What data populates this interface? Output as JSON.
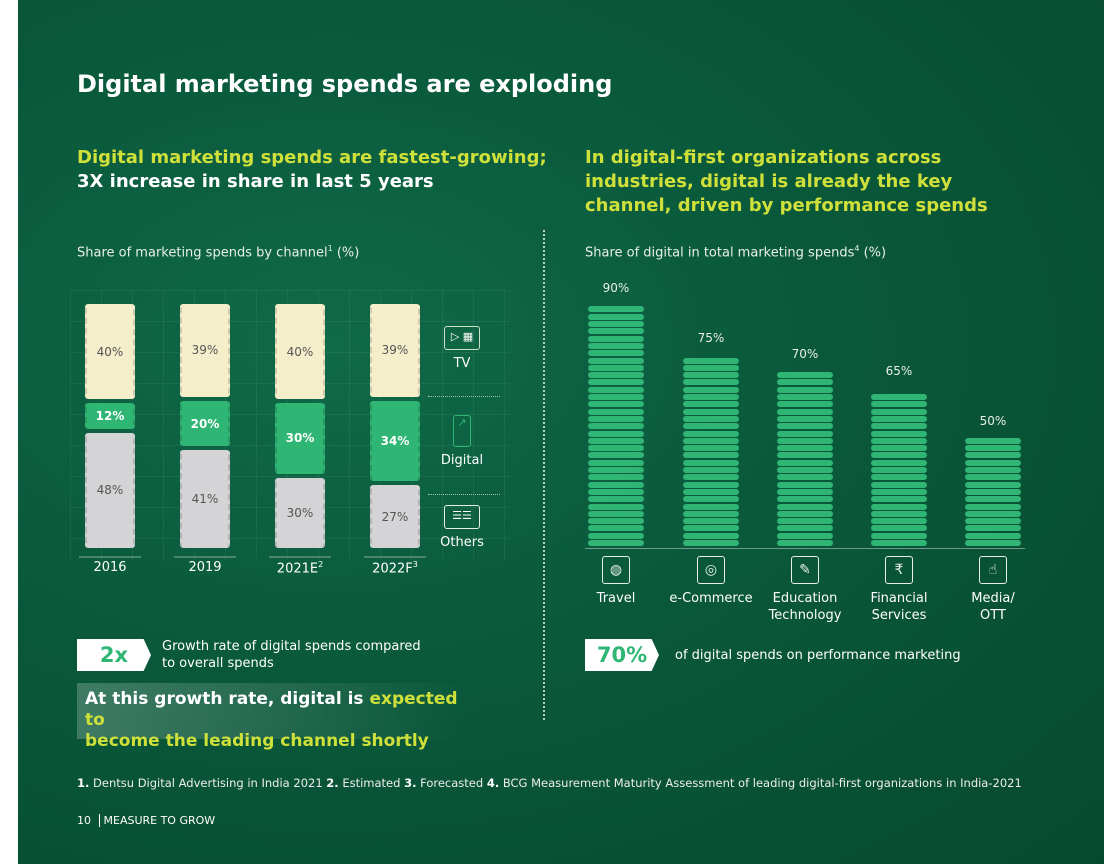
{
  "title": "Digital marketing spends are exploding",
  "left": {
    "sub_line1": "Digital marketing spends are fastest-growing;",
    "sub_line2": "3X increase in share in last 5 years",
    "caption": "Share of marketing spends by channel",
    "caption_sup": "1",
    "caption_unit": " (%)",
    "badge": "2x",
    "badge_text1": "Growth rate of digital spends compared",
    "badge_text2": "to overall spends",
    "callout_white1": "At this growth rate, digital is ",
    "callout_yellow1": "expected to",
    "callout_yellow2": "become the leading channel shortly"
  },
  "right": {
    "sub": "In digital-first organizations across industries, digital is already the key channel, driven by performance spends",
    "caption": "Share of digital in total marketing spends",
    "caption_sup": "4",
    "caption_unit": " (%)",
    "badge": "70%",
    "badge_text": "of digital spends on performance marketing"
  },
  "chart_data": [
    {
      "type": "bar",
      "stacked": true,
      "title": "Share of marketing spends by channel (%)",
      "categories": [
        "2016",
        "2019",
        "2021E",
        "2022F"
      ],
      "category_sups": [
        "",
        "",
        "2",
        "3"
      ],
      "series": [
        {
          "name": "Others",
          "values": [
            48,
            41,
            30,
            27
          ]
        },
        {
          "name": "Digital",
          "values": [
            12,
            20,
            30,
            34
          ]
        },
        {
          "name": "TV",
          "values": [
            40,
            39,
            40,
            39
          ]
        }
      ],
      "labels": {
        "Others": [
          "48%",
          "41%",
          "30%",
          "27%"
        ],
        "Digital": [
          "12%",
          "20%",
          "30%",
          "34%"
        ],
        "TV": [
          "40%",
          "39%",
          "40%",
          "39%"
        ]
      },
      "legend": [
        "TV",
        "Digital",
        "Others"
      ]
    },
    {
      "type": "bar",
      "title": "Share of digital in total marketing spends (%)",
      "categories": [
        "Travel",
        "e-Commerce",
        "Education Technology",
        "Financial Services",
        "Media/ OTT"
      ],
      "category_lines": [
        [
          "Travel"
        ],
        [
          "e-Commerce"
        ],
        [
          "Education",
          "Technology"
        ],
        [
          "Financial",
          "Services"
        ],
        [
          "Media/",
          "OTT"
        ]
      ],
      "values": [
        90,
        75,
        70,
        65,
        50
      ],
      "labels": [
        "90%",
        "75%",
        "70%",
        "65%",
        "50%"
      ]
    }
  ],
  "colors": {
    "tv": "#f4eecb",
    "digital": "#2fb574",
    "others": "#d4d4d6",
    "accent": "#cfe03a"
  },
  "footnote": [
    {
      "n": "1.",
      "t": " Dentsu Digital Advertising in India 2021 "
    },
    {
      "n": "2.",
      "t": " Estimated "
    },
    {
      "n": "3.",
      "t": " Forecasted "
    },
    {
      "n": "4.",
      "t": " BCG Measurement Maturity Assessment of leading digital-first organizations in India-2021"
    }
  ],
  "page": {
    "number": "10",
    "label": "MEASURE TO GROW"
  }
}
